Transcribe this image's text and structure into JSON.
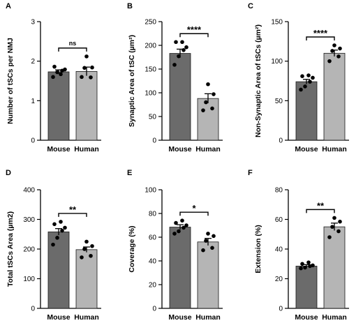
{
  "chart_data": [
    {
      "type": "bar",
      "panel": "A",
      "ylabel": "Number of tSCs per NMJ",
      "categories": [
        "Mouse",
        "Human"
      ],
      "values": [
        1.73,
        1.74
      ],
      "errors": [
        0.05,
        0.11
      ],
      "points": [
        [
          1.6,
          1.72,
          1.76,
          1.79,
          1.86,
          1.67
        ],
        [
          1.6,
          1.59,
          1.83,
          1.84,
          2.12
        ]
      ],
      "ylim": [
        0,
        3
      ],
      "yticks": [
        "0",
        "1",
        "2",
        "3"
      ],
      "significance": "ns",
      "colors": [
        "#6b6b6b",
        "#b5b5b5"
      ]
    },
    {
      "type": "bar",
      "panel": "B",
      "ylabel": "Synaptic Area of tSC (µm²)",
      "categories": [
        "Mouse",
        "Human"
      ],
      "values": [
        183,
        88
      ],
      "errors": [
        9,
        10
      ],
      "points": [
        [
          159,
          177,
          190,
          196,
          207,
          207
        ],
        [
          63,
          67,
          80,
          97,
          118
        ]
      ],
      "ylim": [
        0,
        250
      ],
      "yticks": [
        "0",
        "50",
        "100",
        "150",
        "200",
        "250"
      ],
      "significance": "****",
      "colors": [
        "#6b6b6b",
        "#b5b5b5"
      ]
    },
    {
      "type": "bar",
      "panel": "C",
      "ylabel": "Non-Synaptic Area of tSCs (µm²)",
      "categories": [
        "Mouse",
        "Human"
      ],
      "values": [
        74,
        110
      ],
      "errors": [
        3,
        4
      ],
      "points": [
        [
          64,
          68,
          74,
          79,
          81,
          82
        ],
        [
          100,
          106,
          113,
          116,
          120
        ]
      ],
      "ylim": [
        0,
        150
      ],
      "yticks": [
        "0",
        "50",
        "100",
        "150"
      ],
      "significance": "****",
      "colors": [
        "#6b6b6b",
        "#b5b5b5"
      ]
    },
    {
      "type": "bar",
      "panel": "D",
      "ylabel": "Total tSCs Area (µm2)",
      "categories": [
        "Mouse",
        "Human"
      ],
      "values": [
        258,
        198
      ],
      "errors": [
        11,
        9
      ],
      "points": [
        [
          215,
          238,
          262,
          272,
          284,
          292
        ],
        [
          172,
          177,
          200,
          210,
          225
        ]
      ],
      "ylim": [
        0,
        400
      ],
      "yticks": [
        "0",
        "100",
        "200",
        "300",
        "400"
      ],
      "significance": "**",
      "colors": [
        "#6b6b6b",
        "#b5b5b5"
      ]
    },
    {
      "type": "bar",
      "panel": "E",
      "ylabel": "Coverage (%)",
      "categories": [
        "Mouse",
        "Human"
      ],
      "values": [
        68.5,
        56
      ],
      "errors": [
        2,
        3
      ],
      "points": [
        [
          63,
          65,
          68,
          70,
          72,
          74
        ],
        [
          49,
          51,
          57,
          61,
          63
        ]
      ],
      "ylim": [
        0,
        100
      ],
      "yticks": [
        "0",
        "20",
        "40",
        "60",
        "80",
        "100"
      ],
      "significance": "*",
      "colors": [
        "#6b6b6b",
        "#b5b5b5"
      ]
    },
    {
      "type": "bar",
      "panel": "F",
      "ylabel": "Extension (%)",
      "categories": [
        "Mouse",
        "Human"
      ],
      "values": [
        28.5,
        55
      ],
      "errors": [
        1,
        2.5
      ],
      "points": [
        [
          27,
          27.5,
          28.5,
          29,
          30,
          31
        ],
        [
          48,
          52,
          55,
          58.5,
          61
        ]
      ],
      "ylim": [
        0,
        80
      ],
      "yticks": [
        "0",
        "20",
        "40",
        "60",
        "80"
      ],
      "significance": "**",
      "colors": [
        "#6b6b6b",
        "#b5b5b5"
      ]
    }
  ]
}
